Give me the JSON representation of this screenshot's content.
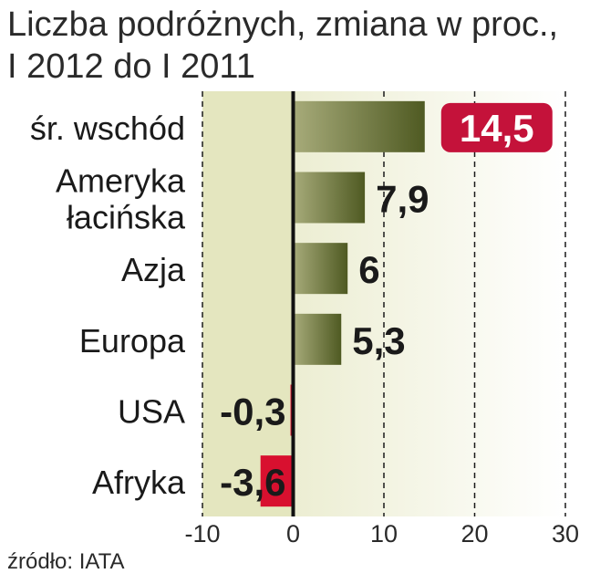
{
  "title_lines": [
    "Liczba podróżnych, zmiana w proc.,",
    "I 2012 do I 2011"
  ],
  "source": "źródło: IATA",
  "colors": {
    "positive_bar_dark": "#4f5a22",
    "positive_bar_light": "#a7ab7a",
    "negative_bar": "#d8102f",
    "highlight_badge": "#c4123a",
    "negative_zone_bg": "#e4e6bf",
    "positive_zone_bg": "#f7f7e6"
  },
  "chart_data": {
    "type": "bar",
    "orientation": "horizontal",
    "categories": [
      [
        "śr. wschód"
      ],
      [
        "Ameryka",
        "łacińska"
      ],
      [
        "Azja"
      ],
      [
        "Europa"
      ],
      [
        "USA"
      ],
      [
        "Afryka"
      ]
    ],
    "values": [
      14.5,
      7.9,
      6,
      5.3,
      -0.3,
      -3.6
    ],
    "value_labels": [
      "14,5",
      "7,9",
      "6",
      "5,3",
      "-0,3",
      "-3,6"
    ],
    "highlighted_index": 0,
    "xlim": [
      -10,
      30
    ],
    "xticks": [
      -10,
      0,
      10,
      20,
      30
    ],
    "grid": "vertical dashed",
    "legend": "none"
  }
}
